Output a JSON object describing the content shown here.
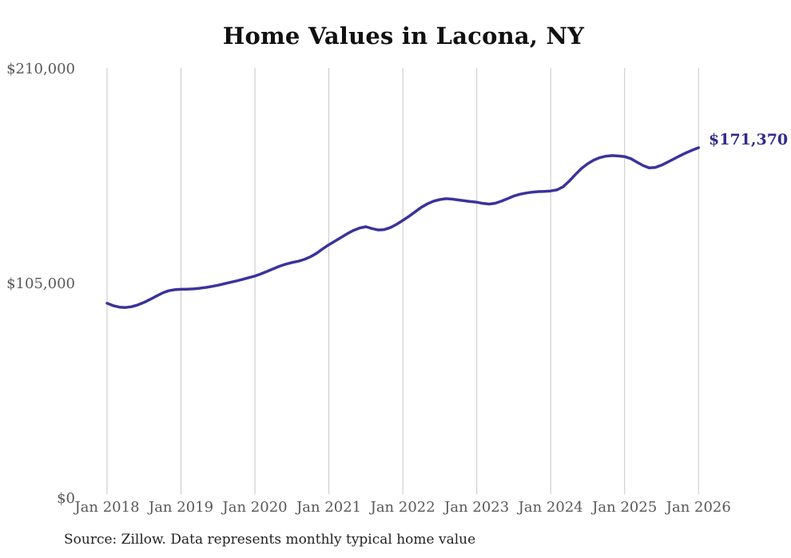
{
  "title": "Home Values in Lacona, NY",
  "source_note": "Source: Zillow. Data represents monthly typical home value",
  "latest_value_label": "$171,370",
  "colors": {
    "line": "#3a339c",
    "latest_label": "#312b8c",
    "gridline": "#c6c6c6",
    "tick_label": "#595959",
    "title": "#111111",
    "source": "#222222",
    "background": "#ffffff"
  },
  "chart_data": {
    "type": "line",
    "title": "Home Values in Lacona, NY",
    "xlabel": "",
    "ylabel": "",
    "ylim": [
      0,
      210000
    ],
    "grid": "vertical-only",
    "legend": "none",
    "x_ticks": [
      {
        "label": "Jan 2018",
        "month_index": 0
      },
      {
        "label": "Jan 2019",
        "month_index": 12
      },
      {
        "label": "Jan 2020",
        "month_index": 24
      },
      {
        "label": "Jan 2021",
        "month_index": 36
      },
      {
        "label": "Jan 2022",
        "month_index": 48
      },
      {
        "label": "Jan 2023",
        "month_index": 60
      },
      {
        "label": "Jan 2024",
        "month_index": 72
      },
      {
        "label": "Jan 2025",
        "month_index": 84
      },
      {
        "label": "Jan 2026",
        "month_index": 96
      }
    ],
    "y_ticks": [
      {
        "label": "$0",
        "value": 0
      },
      {
        "label": "$105,000",
        "value": 105000
      },
      {
        "label": "$210,000",
        "value": 210000
      }
    ],
    "end_annotation": {
      "text": "$171,370",
      "value": 171370
    },
    "series": [
      {
        "name": "Monthly typical home value",
        "start": "Jan 2018",
        "end": "Jan 2026",
        "frequency": "monthly",
        "values": [
          95300,
          94100,
          93400,
          93200,
          93600,
          94500,
          95700,
          97200,
          98800,
          100300,
          101400,
          101900,
          102100,
          102200,
          102300,
          102600,
          103000,
          103500,
          104100,
          104800,
          105500,
          106200,
          107000,
          107800,
          108600,
          109700,
          110900,
          112200,
          113400,
          114400,
          115200,
          115800,
          116700,
          118000,
          119700,
          121900,
          123900,
          125700,
          127500,
          129300,
          130900,
          132100,
          132700,
          131800,
          131100,
          131300,
          132300,
          133900,
          135800,
          137800,
          140000,
          142200,
          143900,
          145200,
          146000,
          146400,
          146200,
          145800,
          145400,
          145000,
          144700,
          144100,
          143800,
          144200,
          145200,
          146400,
          147700,
          148600,
          149200,
          149600,
          149900,
          150000,
          150200,
          150700,
          152200,
          155000,
          158200,
          161200,
          163500,
          165300,
          166500,
          167200,
          167500,
          167300,
          167000,
          166000,
          164300,
          162600,
          161500,
          161700,
          162800,
          164300,
          165900,
          167400,
          168900,
          170200,
          171370
        ]
      }
    ]
  }
}
